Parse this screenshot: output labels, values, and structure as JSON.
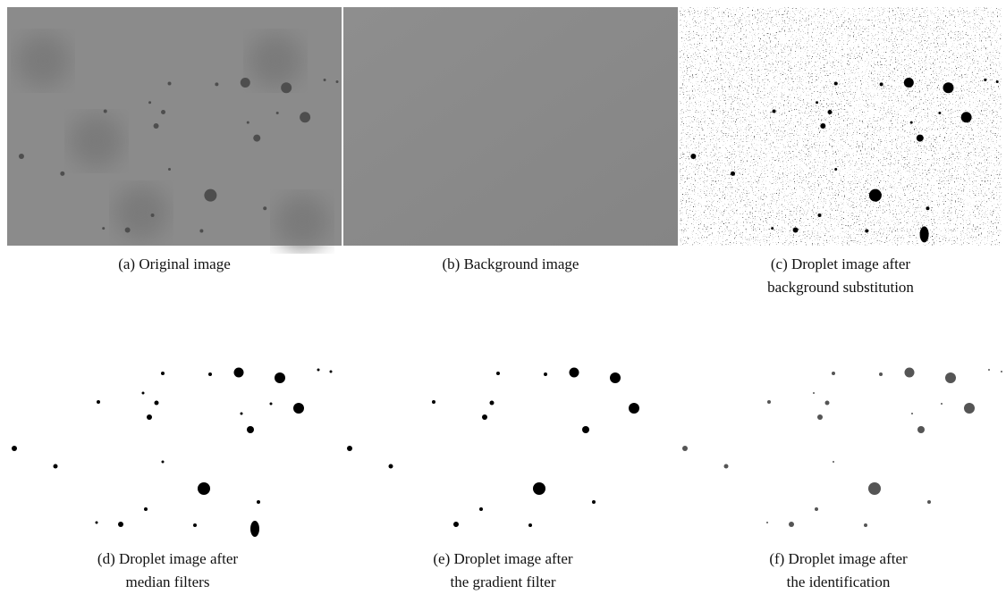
{
  "figure": {
    "panels": [
      {
        "caption": [
          "(a) Original image"
        ]
      },
      {
        "caption": [
          "(b) Background image"
        ]
      },
      {
        "caption": [
          "(c) Droplet image after",
          "background substitution"
        ]
      },
      {
        "caption": [
          "(d) Droplet image after",
          "median filters"
        ]
      },
      {
        "caption": [
          "(e) Droplet image after",
          "the gradient filter"
        ]
      },
      {
        "caption": [
          "(f) Droplet image after",
          "the identification"
        ]
      }
    ]
  }
}
